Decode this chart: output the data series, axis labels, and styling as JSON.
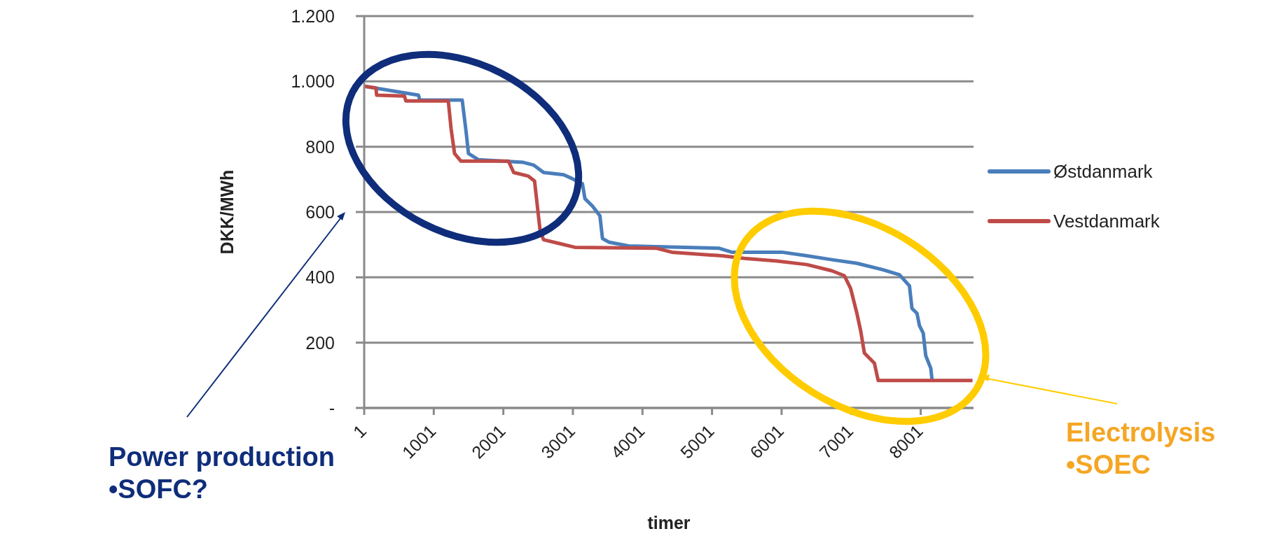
{
  "chart_data": {
    "type": "line",
    "xlabel": "timer",
    "ylabel": "DKK/MWh",
    "xlim": [
      1,
      8760
    ],
    "xticks": [
      1,
      1001,
      2001,
      3001,
      4001,
      5001,
      6001,
      7001,
      8001
    ],
    "ylim": [
      0,
      1200
    ],
    "yticks": [
      {
        "value": 0,
        "label": "-"
      },
      200,
      400,
      600,
      800,
      {
        "value": 1000,
        "label": "1.000"
      },
      {
        "value": 1200,
        "label": "1.200"
      }
    ],
    "grid": "y",
    "legend": "right",
    "series": [
      {
        "name": "Østdanmark",
        "color": "#4a7ebb",
        "x": [
          1,
          780,
          800,
          1410,
          1465,
          1500,
          1645,
          2290,
          2435,
          2580,
          2868,
          2994,
          3138,
          3174,
          3282,
          3390,
          3426,
          3516,
          3803,
          5105,
          5285,
          6004,
          6364,
          6724,
          7083,
          7443,
          7695,
          7839,
          7875,
          7947,
          7983,
          8037,
          8073,
          8145,
          8163
        ],
        "values": [
          985,
          958,
          943,
          943,
          847,
          779,
          760,
          752,
          744,
          721,
          714,
          702,
          687,
          641,
          618,
          588,
          519,
          508,
          496,
          489,
          477,
          477,
          466,
          454,
          443,
          424,
          408,
          374,
          305,
          290,
          252,
          229,
          160,
          122,
          88
        ]
      },
      {
        "name": "Vestdanmark",
        "color": "#be4b48",
        "x": [
          1,
          170,
          180,
          580,
          600,
          1210,
          1250,
          1300,
          1390,
          2075,
          2150,
          2360,
          2450,
          2490,
          2530,
          2580,
          2795,
          3030,
          4206,
          4422,
          5141,
          5465,
          5932,
          6364,
          6724,
          6903,
          6993,
          7083,
          7137,
          7191,
          7335,
          7389,
          8745
        ],
        "values": [
          985,
          980,
          958,
          955,
          940,
          940,
          855,
          779,
          756,
          756,
          721,
          710,
          695,
          618,
          542,
          515,
          504,
          492,
          489,
          477,
          466,
          458,
          450,
          439,
          420,
          405,
          366,
          290,
          237,
          168,
          137,
          84,
          84
        ]
      }
    ],
    "annotations": [
      "Power production\n•SOFC?",
      "Electrolysis\n•SOEC"
    ]
  }
}
